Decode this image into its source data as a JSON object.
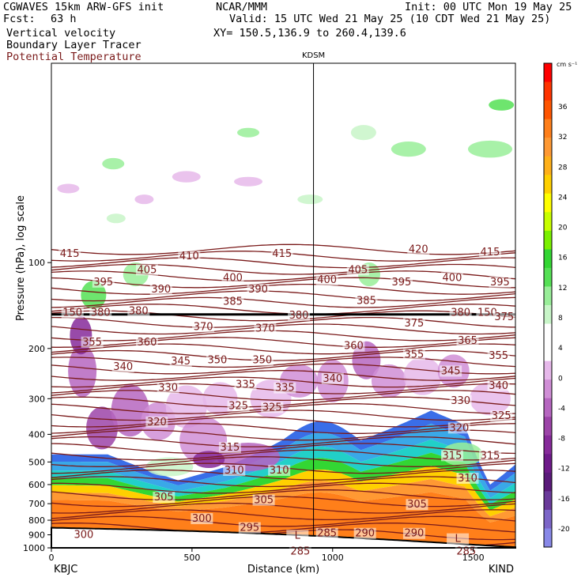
{
  "header": {
    "model": "CGWAVES 15km ARW-GFS init",
    "fcst_label": "Fcst:",
    "fcst_value": "63 h",
    "org": "NCAR/MMM",
    "init": "Init: 00 UTC Mon 19 May 25",
    "valid": "Valid: 15 UTC Wed 21 May 25 (10 CDT Wed 21 May 25)",
    "xy": "XY= 150.5,136.9 to 260.4,139.6",
    "fields": [
      "Vertical velocity",
      "Boundary Layer Tracer",
      "Potential Temperature"
    ]
  },
  "colors": {
    "theta": "#7a1a1a",
    "tropopause": "#000000",
    "terrain": "#000000"
  },
  "chart_data": {
    "type": "heatmap",
    "title": "",
    "xlabel": "Distance (km)",
    "ylabel": "Pressure (hPa), log scale",
    "xlim": [
      0,
      1650
    ],
    "ylim": [
      1000,
      20
    ],
    "y_scale": "log",
    "x_ticks": [
      0,
      500,
      1000,
      1500
    ],
    "y_ticks": [
      100,
      200,
      300,
      400,
      500,
      600,
      700,
      800,
      900,
      1000
    ],
    "station_marker": {
      "label": "KDSM",
      "x": 932
    },
    "endpoints": {
      "left": "KBJC",
      "right": "KIND"
    },
    "colorbar": {
      "units": "cm s⁻¹",
      "labels": [
        36,
        32,
        28,
        24,
        20,
        16,
        12,
        8,
        4,
        0,
        -4,
        -8,
        -12,
        -16,
        -20
      ],
      "colors": [
        "#ff0000",
        "#ff3300",
        "#ff5500",
        "#ff7f1a",
        "#ff9933",
        "#ffb019",
        "#ffd000",
        "#ffff00",
        "#c8ff00",
        "#7af000",
        "#33d633",
        "#55e055",
        "#99ee99",
        "#c8f5c8",
        "#ffffff",
        "#ffffff",
        "#e6b8ea",
        "#d08ed6",
        "#b666c0",
        "#9c44a8",
        "#862a9a",
        "#6e1a8a",
        "#5a1a7a",
        "#6a3a9a",
        "#7c66c8",
        "#8888e8"
      ]
    },
    "theta_labels": [
      {
        "v": "415",
        "x": 65,
        "p": 93
      },
      {
        "v": "410",
        "x": 490,
        "p": 95
      },
      {
        "v": "415",
        "x": 820,
        "p": 93
      },
      {
        "v": "420",
        "x": 1305,
        "p": 90
      },
      {
        "v": "415",
        "x": 1560,
        "p": 92
      },
      {
        "v": "405",
        "x": 340,
        "p": 106
      },
      {
        "v": "405",
        "x": 1090,
        "p": 106
      },
      {
        "v": "395",
        "x": 185,
        "p": 117
      },
      {
        "v": "400",
        "x": 645,
        "p": 113
      },
      {
        "v": "400",
        "x": 980,
        "p": 115
      },
      {
        "v": "395",
        "x": 1245,
        "p": 117
      },
      {
        "v": "400",
        "x": 1425,
        "p": 113
      },
      {
        "v": "395",
        "x": 1595,
        "p": 117
      },
      {
        "v": "390",
        "x": 390,
        "p": 124
      },
      {
        "v": "390",
        "x": 735,
        "p": 124
      },
      {
        "v": "385",
        "x": 645,
        "p": 137
      },
      {
        "v": "385",
        "x": 1120,
        "p": 136
      },
      {
        "v": "150",
        "x": 75,
        "p": 150
      },
      {
        "v": "380",
        "x": 175,
        "p": 150
      },
      {
        "v": "380",
        "x": 310,
        "p": 148
      },
      {
        "v": "380",
        "x": 880,
        "p": 153
      },
      {
        "v": "380",
        "x": 1455,
        "p": 150
      },
      {
        "v": "150",
        "x": 1550,
        "p": 150
      },
      {
        "v": "375",
        "x": 1610,
        "p": 155
      },
      {
        "v": "370",
        "x": 540,
        "p": 168
      },
      {
        "v": "370",
        "x": 760,
        "p": 170
      },
      {
        "v": "375",
        "x": 1290,
        "p": 163
      },
      {
        "v": "355",
        "x": 145,
        "p": 190
      },
      {
        "v": "360",
        "x": 340,
        "p": 190
      },
      {
        "v": "360",
        "x": 1075,
        "p": 196
      },
      {
        "v": "365",
        "x": 1480,
        "p": 188
      },
      {
        "v": "355",
        "x": 1290,
        "p": 210
      },
      {
        "v": "355",
        "x": 1590,
        "p": 212
      },
      {
        "v": "340",
        "x": 255,
        "p": 232
      },
      {
        "v": "345",
        "x": 460,
        "p": 222
      },
      {
        "v": "350",
        "x": 590,
        "p": 220
      },
      {
        "v": "350",
        "x": 750,
        "p": 220
      },
      {
        "v": "345",
        "x": 1420,
        "p": 240
      },
      {
        "v": "340",
        "x": 1000,
        "p": 255
      },
      {
        "v": "340",
        "x": 1590,
        "p": 270
      },
      {
        "v": "330",
        "x": 415,
        "p": 275
      },
      {
        "v": "335",
        "x": 690,
        "p": 268
      },
      {
        "v": "335",
        "x": 830,
        "p": 275
      },
      {
        "v": "325",
        "x": 665,
        "p": 318
      },
      {
        "v": "325",
        "x": 785,
        "p": 322
      },
      {
        "v": "330",
        "x": 1455,
        "p": 305
      },
      {
        "v": "325",
        "x": 1600,
        "p": 345
      },
      {
        "v": "320",
        "x": 375,
        "p": 362
      },
      {
        "v": "320",
        "x": 1450,
        "p": 380
      },
      {
        "v": "315",
        "x": 635,
        "p": 445
      },
      {
        "v": "315",
        "x": 1425,
        "p": 475
      },
      {
        "v": "315",
        "x": 1560,
        "p": 475
      },
      {
        "v": "310",
        "x": 650,
        "p": 535
      },
      {
        "v": "310",
        "x": 810,
        "p": 535
      },
      {
        "v": "310",
        "x": 1480,
        "p": 570
      },
      {
        "v": "305",
        "x": 400,
        "p": 665
      },
      {
        "v": "305",
        "x": 755,
        "p": 680
      },
      {
        "v": "305",
        "x": 1300,
        "p": 705
      },
      {
        "v": "300",
        "x": 535,
        "p": 790
      },
      {
        "v": "295",
        "x": 705,
        "p": 850
      },
      {
        "v": "285",
        "x": 980,
        "p": 890
      },
      {
        "v": "290",
        "x": 1115,
        "p": 890
      },
      {
        "v": "290",
        "x": 1290,
        "p": 890
      },
      {
        "v": "300",
        "x": 115,
        "p": 900
      },
      {
        "v": "L",
        "x": 875,
        "p": 905
      },
      {
        "v": "L",
        "x": 1445,
        "p": 930
      },
      {
        "v": "285",
        "x": 885,
        "p": 1030
      },
      {
        "v": "285",
        "x": 1475,
        "p": 1030
      }
    ]
  }
}
